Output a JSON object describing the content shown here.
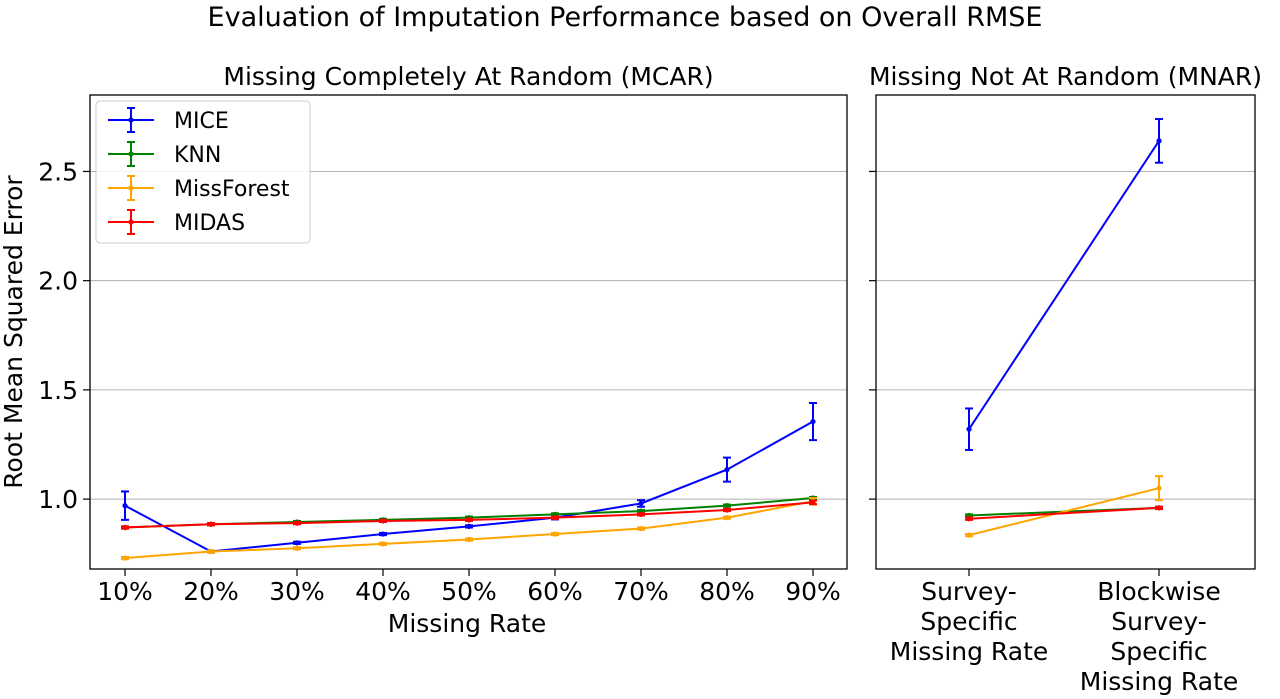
{
  "title": "Evaluation of Imputation Performance based on Overall RMSE",
  "ylabel": "Root Mean Squared Error",
  "colors": {
    "MICE": "#0000ff",
    "KNN": "#008000",
    "MissForest": "#ffa500",
    "MIDAS": "#ff0000"
  },
  "legend": [
    "MICE",
    "KNN",
    "MissForest",
    "MIDAS"
  ],
  "chart_data": [
    {
      "type": "line",
      "title": "Missing Completely At Random (MCAR)",
      "xlabel": "Missing Rate",
      "ylabel": "Root Mean Squared Error",
      "categories": [
        "10%",
        "20%",
        "30%",
        "40%",
        "50%",
        "60%",
        "70%",
        "80%",
        "90%"
      ],
      "ylim": [
        0.68,
        2.85
      ],
      "yticks": [
        "1.0",
        "1.5",
        "2.0",
        "2.5"
      ],
      "grid": "y",
      "legend_position": "upper-left",
      "series": [
        {
          "name": "MICE",
          "values": [
            0.97,
            0.76,
            0.8,
            0.84,
            0.875,
            0.915,
            0.98,
            1.135,
            1.355
          ],
          "errors": [
            0.065,
            0.005,
            0.005,
            0.005,
            0.005,
            0.008,
            0.015,
            0.055,
            0.085
          ]
        },
        {
          "name": "KNN",
          "values": [
            0.87,
            0.885,
            0.895,
            0.905,
            0.915,
            0.93,
            0.945,
            0.97,
            1.005
          ],
          "errors": [
            0.005,
            0.005,
            0.005,
            0.005,
            0.005,
            0.005,
            0.005,
            0.005,
            0.005
          ]
        },
        {
          "name": "MissForest",
          "values": [
            0.73,
            0.76,
            0.775,
            0.795,
            0.815,
            0.84,
            0.865,
            0.915,
            0.99
          ],
          "errors": [
            0.005,
            0.005,
            0.005,
            0.005,
            0.005,
            0.005,
            0.005,
            0.005,
            0.015
          ]
        },
        {
          "name": "MIDAS",
          "values": [
            0.87,
            0.885,
            0.89,
            0.9,
            0.905,
            0.915,
            0.93,
            0.95,
            0.985
          ],
          "errors": [
            0.005,
            0.005,
            0.005,
            0.005,
            0.005,
            0.005,
            0.005,
            0.005,
            0.008
          ]
        }
      ]
    },
    {
      "type": "line",
      "title": "Missing Not At Random (MNAR)",
      "categories": [
        [
          "Survey-",
          "Specific",
          "Missing Rate"
        ],
        [
          "Blockwise",
          "Survey-",
          "Specific",
          "Missing Rate"
        ]
      ],
      "ylim": [
        0.68,
        2.85
      ],
      "grid": "y",
      "series": [
        {
          "name": "MICE",
          "values": [
            1.32,
            2.64
          ],
          "errors": [
            0.095,
            0.1
          ]
        },
        {
          "name": "KNN",
          "values": [
            0.925,
            0.96
          ],
          "errors": [
            0.005,
            0.005
          ]
        },
        {
          "name": "MissForest",
          "values": [
            0.835,
            1.05
          ],
          "errors": [
            0.005,
            0.055
          ]
        },
        {
          "name": "MIDAS",
          "values": [
            0.91,
            0.96
          ],
          "errors": [
            0.005,
            0.005
          ]
        }
      ]
    }
  ]
}
